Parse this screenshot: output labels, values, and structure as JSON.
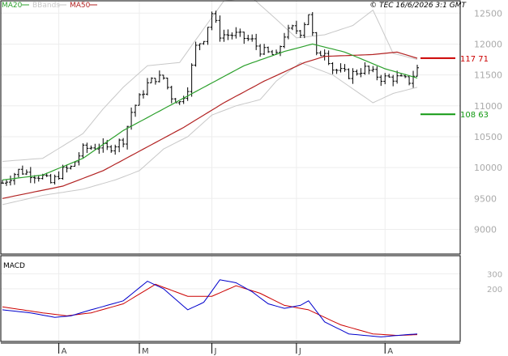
{
  "header": {
    "legend": [
      {
        "label": "MA20",
        "color": "#2ca02c"
      },
      {
        "label": "BBands",
        "color": "#c8c8c8"
      },
      {
        "label": "MA50",
        "color": "#b22222"
      }
    ],
    "copyright": "© TEC 16/6/2026 3:1 GMT"
  },
  "colors": {
    "grid": "#ededed",
    "border": "#000000",
    "candle": "#000000",
    "ma20": "#2ca02c",
    "ma50": "#b22222",
    "bbands": "#c8c8c8",
    "resistance": "#cc0000",
    "support": "#119911",
    "macd_line": "#0000cc",
    "signal_line": "#cc0000"
  },
  "chart_data": [
    {
      "type": "candlestick",
      "title": "",
      "ylim": [
        8600,
        12700
      ],
      "y_ticks": [
        {
          "value": 9000,
          "label": "9000"
        },
        {
          "value": 9500,
          "label": "9500"
        },
        {
          "value": 10000,
          "label": "10000"
        },
        {
          "value": 10500,
          "label": "10500"
        },
        {
          "value": 11000,
          "label": "11000"
        },
        {
          "value": 11500,
          "label": "11500"
        },
        {
          "value": 12000,
          "label": "12000"
        },
        {
          "value": 12500,
          "label": "12500"
        }
      ],
      "x_ticks": [
        {
          "index": 14,
          "label": "A"
        },
        {
          "index": 34,
          "label": "M"
        },
        {
          "index": 52,
          "label": "J"
        },
        {
          "index": 73,
          "label": "J"
        },
        {
          "index": 95,
          "label": "A"
        }
      ],
      "x_count": 104,
      "series": [
        {
          "name": "MA20",
          "anchors": [
            [
              0,
              9800
            ],
            [
              10,
              9880
            ],
            [
              20,
              10150
            ],
            [
              30,
              10600
            ],
            [
              40,
              10950
            ],
            [
              50,
              11300
            ],
            [
              60,
              11650
            ],
            [
              70,
              11880
            ],
            [
              77,
              12000
            ],
            [
              85,
              11870
            ],
            [
              95,
              11600
            ],
            [
              103,
              11450
            ]
          ]
        },
        {
          "name": "MA50",
          "anchors": [
            [
              0,
              9500
            ],
            [
              15,
              9700
            ],
            [
              25,
              9950
            ],
            [
              35,
              10300
            ],
            [
              45,
              10650
            ],
            [
              55,
              11050
            ],
            [
              65,
              11400
            ],
            [
              75,
              11700
            ],
            [
              80,
              11800
            ],
            [
              92,
              11830
            ],
            [
              98,
              11870
            ],
            [
              103,
              11770
            ]
          ]
        },
        {
          "name": "BBand upper",
          "anchors": [
            [
              0,
              10100
            ],
            [
              10,
              10150
            ],
            [
              20,
              10550
            ],
            [
              25,
              10950
            ],
            [
              30,
              11300
            ],
            [
              36,
              11650
            ],
            [
              44,
              11700
            ],
            [
              50,
              12250
            ],
            [
              55,
              12700
            ],
            [
              62,
              12750
            ],
            [
              68,
              12400
            ],
            [
              73,
              12100
            ],
            [
              80,
              12150
            ],
            [
              87,
              12300
            ],
            [
              92,
              12550
            ],
            [
              97,
              11850
            ],
            [
              103,
              11750
            ]
          ]
        },
        {
          "name": "BBand lower",
          "anchors": [
            [
              0,
              9400
            ],
            [
              10,
              9550
            ],
            [
              20,
              9650
            ],
            [
              28,
              9800
            ],
            [
              34,
              9950
            ],
            [
              40,
              10300
            ],
            [
              46,
              10500
            ],
            [
              52,
              10850
            ],
            [
              58,
              11000
            ],
            [
              64,
              11100
            ],
            [
              68,
              11400
            ],
            [
              74,
              11700
            ],
            [
              82,
              11500
            ],
            [
              92,
              11050
            ],
            [
              97,
              11200
            ],
            [
              103,
              11300
            ]
          ]
        }
      ],
      "levels": [
        {
          "name": "resistance",
          "value": 11771,
          "label": "117 71"
        },
        {
          "name": "support",
          "value": 10863,
          "label": "108 63"
        }
      ],
      "price_anchors": [
        [
          0,
          9750
        ],
        [
          4,
          9950
        ],
        [
          10,
          9850
        ],
        [
          12,
          9750
        ],
        [
          15,
          9950
        ],
        [
          17,
          10000
        ],
        [
          20,
          10300
        ],
        [
          24,
          10350
        ],
        [
          26,
          10300
        ],
        [
          30,
          10450
        ],
        [
          32,
          10900
        ],
        [
          36,
          11350
        ],
        [
          38,
          11450
        ],
        [
          40,
          11450
        ],
        [
          42,
          11150
        ],
        [
          44,
          11050
        ],
        [
          46,
          11300
        ],
        [
          48,
          11950
        ],
        [
          50,
          12100
        ],
        [
          52,
          12500
        ],
        [
          54,
          12150
        ],
        [
          58,
          12150
        ],
        [
          62,
          12050
        ],
        [
          64,
          11900
        ],
        [
          66,
          11850
        ],
        [
          68,
          11800
        ],
        [
          70,
          12150
        ],
        [
          72,
          12250
        ],
        [
          74,
          12200
        ],
        [
          76,
          12500
        ],
        [
          78,
          11800
        ],
        [
          80,
          11900
        ],
        [
          82,
          11600
        ],
        [
          86,
          11500
        ],
        [
          90,
          11600
        ],
        [
          94,
          11450
        ],
        [
          98,
          11450
        ],
        [
          101,
          11400
        ],
        [
          103,
          11600
        ]
      ],
      "noise_amplitude": 70,
      "candle_range": 150
    },
    {
      "type": "line",
      "title": "MACD",
      "ylim": [
        -150,
        420
      ],
      "y_ticks": [
        {
          "value": 200,
          "label": "200"
        },
        {
          "value": 300,
          "label": "300"
        }
      ],
      "x_count": 104,
      "series": [
        {
          "name": "MACD",
          "anchors": [
            [
              0,
              60
            ],
            [
              7,
              40
            ],
            [
              13,
              10
            ],
            [
              17,
              20
            ],
            [
              22,
              60
            ],
            [
              30,
              120
            ],
            [
              36,
              250
            ],
            [
              40,
              200
            ],
            [
              46,
              60
            ],
            [
              50,
              110
            ],
            [
              54,
              260
            ],
            [
              58,
              240
            ],
            [
              62,
              180
            ],
            [
              66,
              100
            ],
            [
              70,
              70
            ],
            [
              74,
              90
            ],
            [
              76,
              120
            ],
            [
              80,
              -20
            ],
            [
              86,
              -100
            ],
            [
              94,
              -120
            ],
            [
              98,
              -110
            ],
            [
              103,
              -100
            ]
          ]
        },
        {
          "name": "Signal",
          "anchors": [
            [
              0,
              80
            ],
            [
              10,
              40
            ],
            [
              16,
              20
            ],
            [
              22,
              40
            ],
            [
              30,
              100
            ],
            [
              38,
              230
            ],
            [
              46,
              150
            ],
            [
              52,
              150
            ],
            [
              58,
              220
            ],
            [
              64,
              170
            ],
            [
              70,
              90
            ],
            [
              76,
              60
            ],
            [
              84,
              -40
            ],
            [
              92,
              -100
            ],
            [
              98,
              -110
            ],
            [
              103,
              -105
            ]
          ]
        }
      ]
    }
  ]
}
